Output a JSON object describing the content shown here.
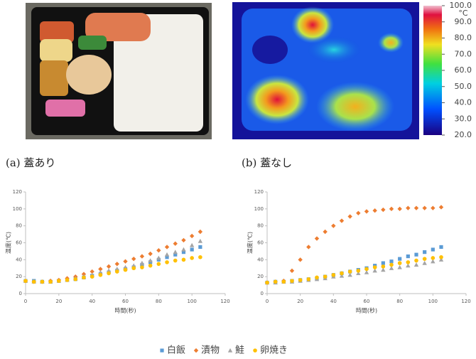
{
  "captions": [
    "(a) 蓋あり",
    "(b) 蓋なし"
  ],
  "colorbar": {
    "ticks": [
      {
        "value": 100,
        "label": "100.0"
      },
      {
        "value": 90,
        "label": "90.0"
      },
      {
        "value": 80,
        "label": "80.0"
      },
      {
        "value": 70,
        "label": "70.0"
      },
      {
        "value": 60,
        "label": "60.0"
      },
      {
        "value": 50,
        "label": "50.0"
      },
      {
        "value": 40,
        "label": "40.0"
      },
      {
        "value": 30,
        "label": "30.0"
      },
      {
        "value": 20,
        "label": "20.0"
      }
    ],
    "lim": [
      20,
      100
    ],
    "unit": "°C"
  },
  "chart_data": [
    {
      "type": "scatter",
      "x_label": "時間(秒)",
      "y_label": "温度(℃)",
      "x": [
        0,
        5,
        10,
        15,
        20,
        25,
        30,
        35,
        40,
        45,
        50,
        55,
        60,
        65,
        70,
        75,
        80,
        85,
        90,
        95,
        100,
        105
      ],
      "xlim": [
        0,
        120
      ],
      "xticks": [
        0,
        20,
        40,
        60,
        80,
        100,
        120
      ],
      "ylim": [
        0,
        120
      ],
      "yticks": [
        0,
        20,
        40,
        60,
        80,
        100,
        120
      ],
      "series": [
        {
          "name": "白飯",
          "color": "#5b9bd5",
          "marker": "square",
          "values": [
            15,
            15,
            14,
            14,
            15,
            16,
            17,
            19,
            21,
            23,
            25,
            27,
            29,
            31,
            34,
            37,
            40,
            43,
            46,
            49,
            52,
            55
          ]
        },
        {
          "name": "漬物",
          "color": "#ed7d31",
          "marker": "diamond",
          "values": [
            15,
            14,
            14,
            15,
            16,
            18,
            20,
            23,
            26,
            29,
            32,
            35,
            38,
            41,
            44,
            47,
            51,
            55,
            59,
            63,
            68,
            73
          ]
        },
        {
          "name": "鮭",
          "color": "#a5a5a5",
          "marker": "triangle",
          "values": [
            15,
            14,
            14,
            14,
            15,
            16,
            18,
            20,
            22,
            25,
            27,
            29,
            31,
            33,
            36,
            39,
            42,
            46,
            49,
            52,
            57,
            62
          ]
        },
        {
          "name": "卵焼き",
          "color": "#ffc000",
          "marker": "circle",
          "values": [
            15,
            14,
            14,
            14,
            15,
            16,
            17,
            19,
            20,
            22,
            24,
            26,
            28,
            30,
            31,
            33,
            35,
            37,
            39,
            40,
            42,
            43
          ]
        }
      ]
    },
    {
      "type": "scatter",
      "x_label": "時間(秒)",
      "y_label": "温度(℃)",
      "x": [
        0,
        5,
        10,
        15,
        20,
        25,
        30,
        35,
        40,
        45,
        50,
        55,
        60,
        65,
        70,
        75,
        80,
        85,
        90,
        95,
        100,
        105
      ],
      "xlim": [
        0,
        120
      ],
      "xticks": [
        0,
        20,
        40,
        60,
        80,
        100,
        120
      ],
      "ylim": [
        0,
        120
      ],
      "yticks": [
        0,
        20,
        40,
        60,
        80,
        100,
        120
      ],
      "series": [
        {
          "name": "白飯",
          "color": "#5b9bd5",
          "marker": "square",
          "values": [
            13,
            14,
            14,
            15,
            16,
            17,
            18,
            20,
            22,
            24,
            26,
            28,
            30,
            33,
            36,
            38,
            41,
            44,
            46,
            49,
            52,
            55
          ]
        },
        {
          "name": "漬物",
          "color": "#ed7d31",
          "marker": "diamond",
          "values": [
            13,
            14,
            15,
            27,
            40,
            55,
            65,
            73,
            80,
            86,
            91,
            95,
            97,
            98,
            99,
            100,
            100,
            101,
            101,
            101,
            101,
            102
          ]
        },
        {
          "name": "鮭",
          "color": "#a5a5a5",
          "marker": "triangle",
          "values": [
            13,
            13,
            14,
            14,
            15,
            16,
            17,
            18,
            20,
            21,
            22,
            24,
            25,
            27,
            28,
            30,
            31,
            33,
            34,
            36,
            38,
            40
          ]
        },
        {
          "name": "卵焼き",
          "color": "#ffc000",
          "marker": "circle",
          "values": [
            13,
            14,
            14,
            15,
            16,
            17,
            19,
            20,
            22,
            24,
            26,
            27,
            29,
            31,
            32,
            34,
            36,
            37,
            39,
            41,
            42,
            43
          ]
        }
      ]
    }
  ]
}
